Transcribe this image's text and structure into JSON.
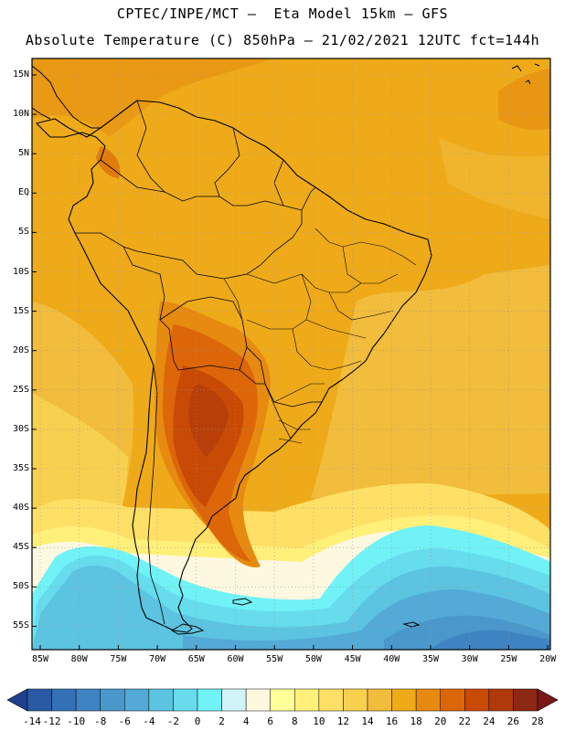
{
  "header": {
    "line1": "CPTEC/INPE/MCT –  Eta Model 15km – GFS",
    "line2": "Absolute Temperature (C) 850hPa – 21/02/2021 12UTC fct=144h"
  },
  "map": {
    "latitude_labels": [
      "15N",
      "10N",
      "5N",
      "EQ",
      "5S",
      "10S",
      "15S",
      "20S",
      "25S",
      "30S",
      "35S",
      "40S",
      "45S",
      "50S",
      "55S"
    ],
    "longitude_labels": [
      "85W",
      "80W",
      "75W",
      "70W",
      "65W",
      "60W",
      "55W",
      "50W",
      "45W",
      "40W",
      "35W",
      "30W",
      "25W",
      "20W"
    ],
    "grid": "dotted",
    "region": "South America"
  },
  "colorbar": {
    "labels": [
      "-14",
      "-12",
      "-10",
      "-8",
      "-6",
      "-4",
      "-2",
      "0",
      "2",
      "4",
      "6",
      "8",
      "10",
      "12",
      "14",
      "16",
      "18",
      "20",
      "22",
      "24",
      "26",
      "28"
    ],
    "colors": [
      "#1f3f8f",
      "#2b5aa5",
      "#3470b5",
      "#3f84c2",
      "#4a97cc",
      "#53aad6",
      "#5cc3e0",
      "#66dcec",
      "#70f2f6",
      "#d0f4f7",
      "#fff8e0",
      "#ffff99",
      "#fff07a",
      "#ffe066",
      "#f8d050",
      "#f2bc3c",
      "#eeaa18",
      "#e68a10",
      "#dc6608",
      "#c84a05",
      "#b03a0a",
      "#8c2814",
      "#7a1818"
    ],
    "units": "C"
  }
}
